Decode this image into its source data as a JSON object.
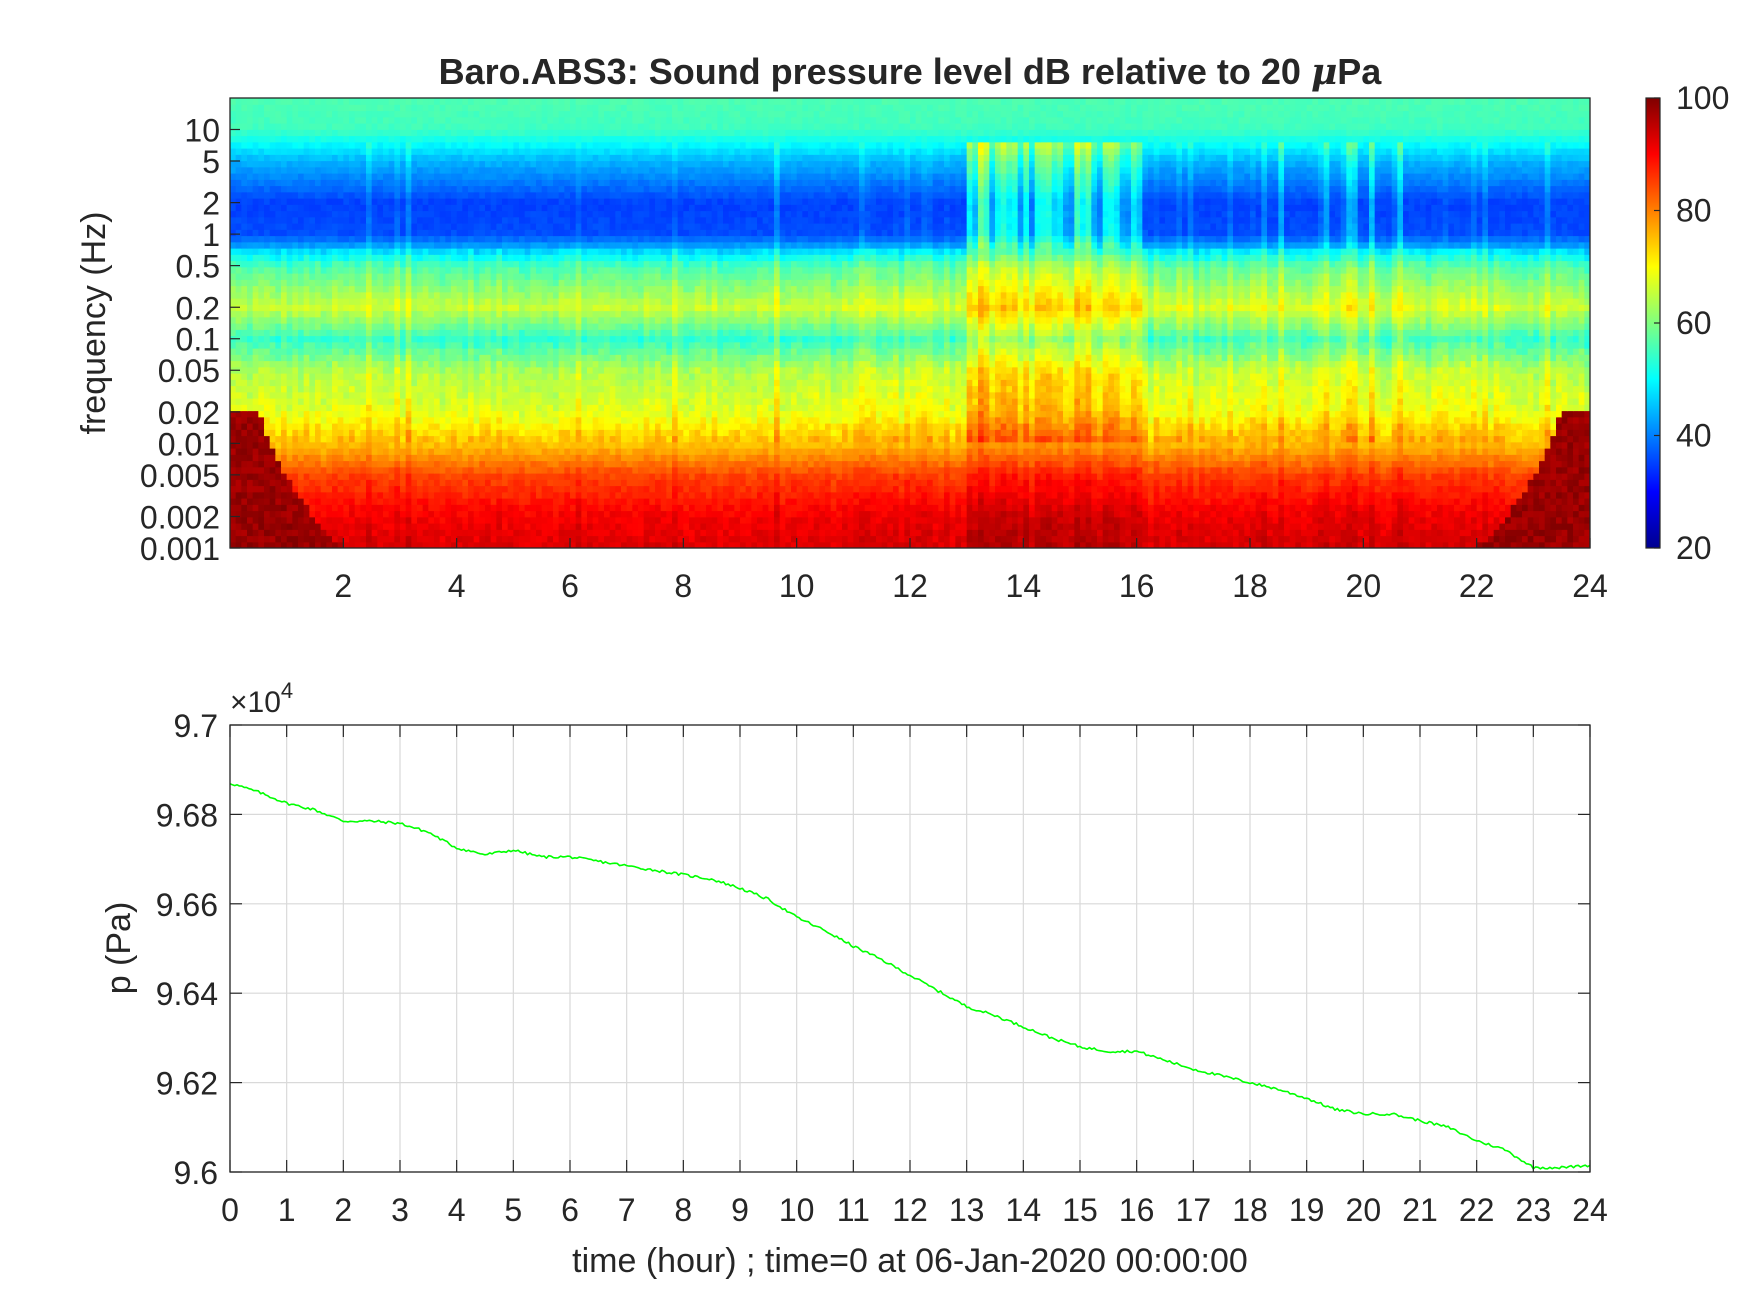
{
  "chart_data": [
    {
      "type": "heatmap",
      "title": "Baro.ABS3: Sound pressure level dB relative to 20 μPa",
      "title_prefix": "Baro.ABS3: Sound pressure level dB relative to 20 ",
      "title_mu": "μ",
      "title_suffix": "Pa",
      "xlabel": "",
      "ylabel": "frequency (Hz)",
      "xlim": [
        0,
        24
      ],
      "xticks": [
        2,
        4,
        6,
        8,
        10,
        12,
        14,
        16,
        18,
        20,
        22,
        24
      ],
      "yscale": "log",
      "ylim": [
        0.001,
        20
      ],
      "yticks": [
        0.001,
        0.002,
        0.005,
        0.01,
        0.02,
        0.05,
        0.1,
        0.2,
        0.5,
        1,
        2,
        5,
        10
      ],
      "ytick_labels": [
        "0.001",
        "0.002",
        "0.005",
        "0.01",
        "0.02",
        "0.05",
        "0.1",
        "0.2",
        "0.5",
        "1",
        "2",
        "5",
        "10"
      ],
      "colormap": "jet",
      "color_range": [
        20,
        100
      ],
      "colorbar_ticks": [
        20,
        40,
        60,
        80,
        100
      ],
      "grid": false,
      "approx_level_profile_db": {
        "frequency_hz": [
          0.001,
          0.002,
          0.005,
          0.01,
          0.02,
          0.05,
          0.1,
          0.2,
          0.5,
          1,
          2,
          5,
          10,
          20
        ],
        "level_db": [
          92,
          90,
          84,
          74,
          66,
          62,
          52,
          64,
          54,
          36,
          35,
          44,
          55,
          56
        ]
      },
      "approx_active_period_hours": [
        13,
        16
      ]
    },
    {
      "type": "line",
      "title": "",
      "xlabel": "time (hour) ; time=0 at 06-Jan-2020 00:00:00",
      "ylabel": "p (Pa)",
      "exponent_label": "×10",
      "exponent_power": "4",
      "xlim": [
        0,
        24
      ],
      "ylim": [
        96000,
        97000
      ],
      "xticks": [
        0,
        1,
        2,
        3,
        4,
        5,
        6,
        7,
        8,
        9,
        10,
        11,
        12,
        13,
        14,
        15,
        16,
        17,
        18,
        19,
        20,
        21,
        22,
        23,
        24
      ],
      "yticks": [
        96000,
        96200,
        96400,
        96600,
        96800,
        97000
      ],
      "ytick_labels": [
        "9.6",
        "9.62",
        "9.64",
        "9.66",
        "9.68",
        "9.7"
      ],
      "grid": true,
      "color": "#00ff00",
      "series": [
        {
          "x": [
            0,
            0.5,
            1,
            1.5,
            2,
            2.5,
            3,
            3.5,
            4,
            4.5,
            5,
            5.5,
            6,
            6.5,
            7,
            7.5,
            8,
            8.5,
            9,
            9.5,
            10,
            10.5,
            11,
            11.5,
            12,
            12.5,
            13,
            13.5,
            14,
            14.5,
            15,
            15.5,
            16,
            16.5,
            17,
            17.5,
            18,
            18.5,
            19,
            19.5,
            20,
            20.5,
            21,
            21.5,
            22,
            22.5,
            23,
            23.5,
            24
          ],
          "y": [
            96870,
            96850,
            96825,
            96810,
            96785,
            96785,
            96780,
            96760,
            96725,
            96710,
            96720,
            96705,
            96705,
            96695,
            96685,
            96675,
            96665,
            96655,
            96635,
            96610,
            96570,
            96540,
            96505,
            96475,
            96440,
            96405,
            96370,
            96350,
            96325,
            96300,
            96280,
            96270,
            96270,
            96250,
            96230,
            96215,
            96200,
            96185,
            96165,
            96140,
            96130,
            96130,
            96115,
            96100,
            96070,
            96050,
            96010,
            96010,
            96015
          ]
        }
      ]
    }
  ]
}
